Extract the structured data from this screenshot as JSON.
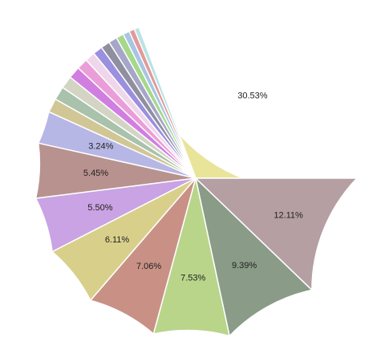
{
  "chart_data": {
    "type": "pie",
    "title": "",
    "start_angle_deg": 0,
    "direction": "clockwise",
    "slices": [
      {
        "value": 30.53,
        "label": "30.53%",
        "color": "#e8e59a"
      },
      {
        "value": 0.5,
        "label": "",
        "color": "#b9e3e3"
      },
      {
        "value": 0.55,
        "label": "",
        "color": "#e29a9a"
      },
      {
        "value": 0.65,
        "label": "",
        "color": "#a8c5e3"
      },
      {
        "value": 0.75,
        "label": "",
        "color": "#a6d88c"
      },
      {
        "value": 0.85,
        "label": "",
        "color": "#a6a6c9"
      },
      {
        "value": 0.9,
        "label": "",
        "color": "#8f8f9f"
      },
      {
        "value": 0.95,
        "label": "",
        "color": "#9b8fe0"
      },
      {
        "value": 1.0,
        "label": "",
        "color": "#f0d6ea"
      },
      {
        "value": 1.1,
        "label": "",
        "color": "#ea9ed8"
      },
      {
        "value": 1.2,
        "label": "",
        "color": "#d07fe0"
      },
      {
        "value": 1.25,
        "label": "",
        "color": "#d4d4c4"
      },
      {
        "value": 1.35,
        "label": "",
        "color": "#a8c2ac"
      },
      {
        "value": 1.4,
        "label": "",
        "color": "#d1c696"
      },
      {
        "value": 3.24,
        "label": "3.24%",
        "color": "#b7b7e6"
      },
      {
        "value": 5.45,
        "label": "5.45%",
        "color": "#b8928f"
      },
      {
        "value": 5.5,
        "label": "5.50%",
        "color": "#c9a3e3"
      },
      {
        "value": 6.11,
        "label": "6.11%",
        "color": "#d8d08a"
      },
      {
        "value": 7.06,
        "label": "7.06%",
        "color": "#c99186"
      },
      {
        "value": 7.53,
        "label": "7.53%",
        "color": "#b8d58a"
      },
      {
        "value": 9.39,
        "label": "9.39%",
        "color": "#8a9b87"
      },
      {
        "value": 12.11,
        "label": "12.11%",
        "color": "#b59fa3"
      }
    ]
  }
}
